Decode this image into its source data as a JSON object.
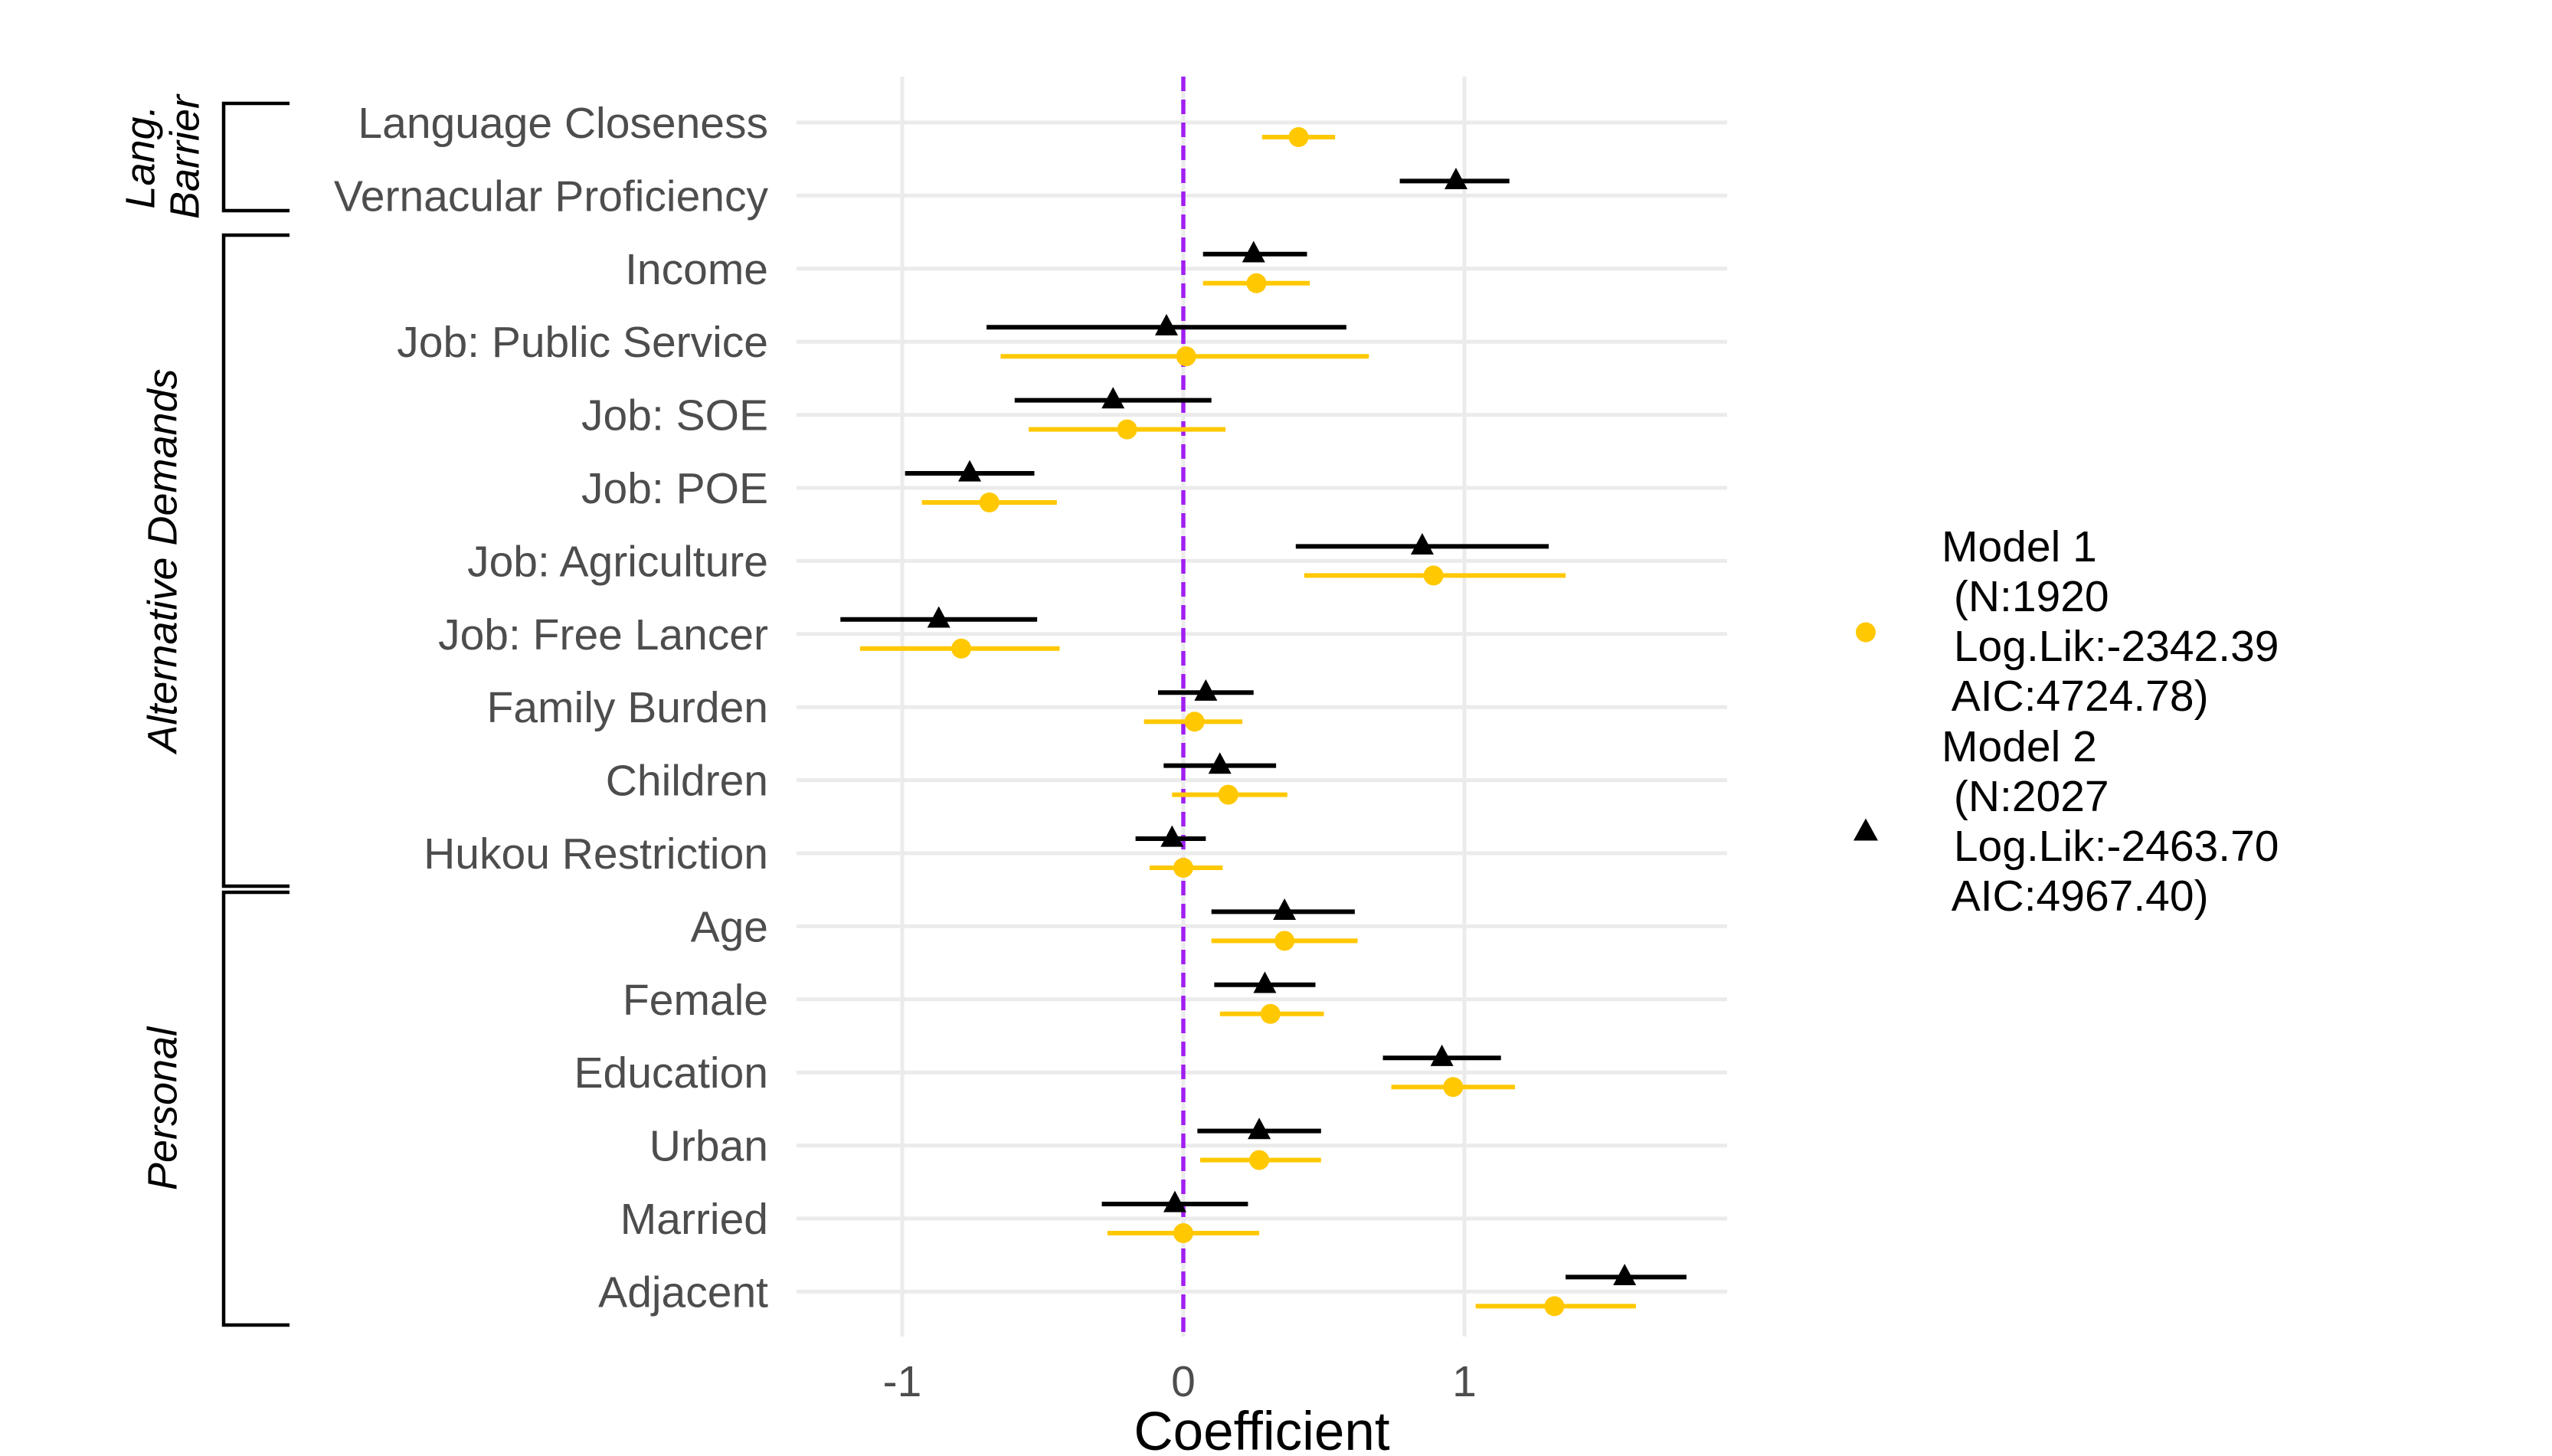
{
  "chart_data": {
    "type": "scatter",
    "subtype": "coefficient-plot",
    "title": "",
    "xlabel": "Coefficient",
    "ylabel": "",
    "xlim": [
      -1.35,
      1.93
    ],
    "xticks": [
      -1,
      0,
      1
    ],
    "xtick_labels": [
      "-1",
      "0",
      "1"
    ],
    "reference_line": {
      "x": 0,
      "style": "dashed",
      "color": "#A020F0"
    },
    "grid": true,
    "legend_position": "right",
    "categories": [
      "Language Closeness",
      "Vernacular Proficiency",
      "Income",
      "Job: Public Service",
      "Job: SOE",
      "Job: POE",
      "Job: Agriculture",
      "Job: Free Lancer",
      "Family Burden",
      "Children",
      "Hukou Restriction",
      "Age",
      "Female",
      "Education",
      "Urban",
      "Married",
      "Adjacent"
    ],
    "groups": [
      {
        "label": "Lang. Barrier",
        "lines": [
          "Lang.",
          "Barrier"
        ],
        "from": 0,
        "to": 1
      },
      {
        "label": "Alternative Demands",
        "lines": [
          "Alternative Demands"
        ],
        "from": 2,
        "to": 10
      },
      {
        "label": "Personal",
        "lines": [
          "Personal"
        ],
        "from": 11,
        "to": 16
      }
    ],
    "series": [
      {
        "name": "Model 1 (N:1920 Log.Lik:-2342.39 AIC:4724.78)",
        "legend_lines": [
          "Model 1",
          " (N:1920",
          " Log.Lik:-2342.39",
          " AIC:4724.78)"
        ],
        "marker": "circle",
        "color": "#FFC800",
        "points": [
          {
            "category": "Language Closeness",
            "estimate": 0.41,
            "low": 0.28,
            "high": 0.54
          },
          {
            "category": "Income",
            "estimate": 0.26,
            "low": 0.07,
            "high": 0.45
          },
          {
            "category": "Job: Public Service",
            "estimate": 0.01,
            "low": -0.65,
            "high": 0.66
          },
          {
            "category": "Job: SOE",
            "estimate": -0.2,
            "low": -0.55,
            "high": 0.15
          },
          {
            "category": "Job: POE",
            "estimate": -0.69,
            "low": -0.93,
            "high": -0.45
          },
          {
            "category": "Job: Agriculture",
            "estimate": 0.89,
            "low": 0.43,
            "high": 1.36
          },
          {
            "category": "Job: Free Lancer",
            "estimate": -0.79,
            "low": -1.15,
            "high": -0.44
          },
          {
            "category": "Family Burden",
            "estimate": 0.04,
            "low": -0.14,
            "high": 0.21
          },
          {
            "category": "Children",
            "estimate": 0.16,
            "low": -0.04,
            "high": 0.37
          },
          {
            "category": "Hukou Restriction",
            "estimate": 0.0,
            "low": -0.12,
            "high": 0.14
          },
          {
            "category": "Age",
            "estimate": 0.36,
            "low": 0.1,
            "high": 0.62
          },
          {
            "category": "Female",
            "estimate": 0.31,
            "low": 0.13,
            "high": 0.5
          },
          {
            "category": "Education",
            "estimate": 0.96,
            "low": 0.74,
            "high": 1.18
          },
          {
            "category": "Urban",
            "estimate": 0.27,
            "low": 0.06,
            "high": 0.49
          },
          {
            "category": "Married",
            "estimate": 0.0,
            "low": -0.27,
            "high": 0.27
          },
          {
            "category": "Adjacent",
            "estimate": 1.32,
            "low": 1.04,
            "high": 1.61
          }
        ]
      },
      {
        "name": "Model 2 (N:2027 Log.Lik:-2463.70 AIC:4967.40)",
        "legend_lines": [
          "Model 2",
          " (N:2027",
          " Log.Lik:-2463.70",
          " AIC:4967.40)"
        ],
        "marker": "triangle",
        "color": "#000000",
        "points": [
          {
            "category": "Vernacular Proficiency",
            "estimate": 0.97,
            "low": 0.77,
            "high": 1.16
          },
          {
            "category": "Income",
            "estimate": 0.25,
            "low": 0.07,
            "high": 0.44
          },
          {
            "category": "Job: Public Service",
            "estimate": -0.06,
            "low": -0.7,
            "high": 0.58
          },
          {
            "category": "Job: SOE",
            "estimate": -0.25,
            "low": -0.6,
            "high": 0.1
          },
          {
            "category": "Job: POE",
            "estimate": -0.76,
            "low": -0.99,
            "high": -0.53
          },
          {
            "category": "Job: Agriculture",
            "estimate": 0.85,
            "low": 0.4,
            "high": 1.3
          },
          {
            "category": "Job: Free Lancer",
            "estimate": -0.87,
            "low": -1.22,
            "high": -0.52
          },
          {
            "category": "Family Burden",
            "estimate": 0.08,
            "low": -0.09,
            "high": 0.25
          },
          {
            "category": "Children",
            "estimate": 0.13,
            "low": -0.07,
            "high": 0.33
          },
          {
            "category": "Hukou Restriction",
            "estimate": -0.04,
            "low": -0.17,
            "high": 0.08
          },
          {
            "category": "Age",
            "estimate": 0.36,
            "low": 0.1,
            "high": 0.61
          },
          {
            "category": "Female",
            "estimate": 0.29,
            "low": 0.11,
            "high": 0.47
          },
          {
            "category": "Education",
            "estimate": 0.92,
            "low": 0.71,
            "high": 1.13
          },
          {
            "category": "Urban",
            "estimate": 0.27,
            "low": 0.05,
            "high": 0.49
          },
          {
            "category": "Married",
            "estimate": -0.03,
            "low": -0.29,
            "high": 0.23
          },
          {
            "category": "Adjacent",
            "estimate": 1.57,
            "low": 1.36,
            "high": 1.79
          }
        ]
      }
    ]
  }
}
